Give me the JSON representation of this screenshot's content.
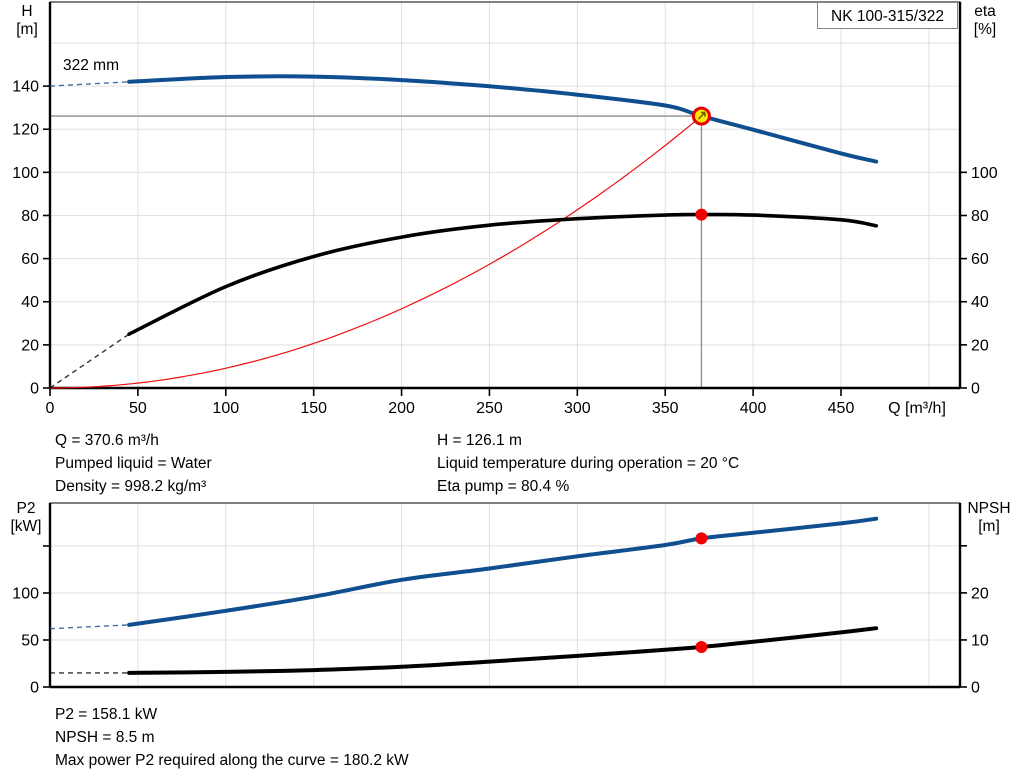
{
  "pump": {
    "model": "NK 100-315/322",
    "impeller_label": "322 mm"
  },
  "axis_titles": {
    "h": [
      "H",
      "[m]"
    ],
    "eta": [
      "eta",
      "[%]"
    ],
    "p2": [
      "P2",
      "[kW]"
    ],
    "npsh": [
      "NPSH",
      "[m]"
    ],
    "q": "Q [m³/h]"
  },
  "operating_point_info": {
    "left": [
      "Q = 370.6 m³/h",
      "Pumped liquid = Water",
      "Density = 998.2 kg/m³"
    ],
    "right": [
      "H = 126.1 m",
      "Liquid temperature during operation = 20 °C",
      "Eta pump = 80.4 %"
    ]
  },
  "power_info": [
    "P2 = 158.1 kW",
    "NPSH = 8.5 m",
    "Max power P2 required along the curve = 180.2 kW"
  ],
  "colors": {
    "curve_blue": "#104f8f",
    "curve_black": "#000000",
    "system_curve_red": "#f01010",
    "grid": "#e0e0e0",
    "crosshair": "#8c8c8c",
    "duty_fill": "#ffe800",
    "duty_stroke": "#e60000",
    "duty_dot": "#f00000",
    "axis": "#000000"
  },
  "chart_data": [
    {
      "type": "line",
      "title": "NK 100-315/322",
      "x": {
        "label": "Q [m³/h]",
        "min": 0,
        "max": 517.7,
        "tick_labels": [
          0,
          50,
          100,
          150,
          200,
          250,
          300,
          350,
          400,
          450
        ],
        "grid": [
          50,
          100,
          150,
          200,
          250,
          300,
          350,
          400,
          450,
          500
        ]
      },
      "y_left": {
        "label": "H [m]",
        "min": 0,
        "max": 179,
        "tick_labels": [
          0,
          20,
          40,
          60,
          80,
          100,
          120,
          140
        ],
        "grid": [
          20,
          40,
          60,
          80,
          100,
          120,
          140,
          160
        ]
      },
      "y_right": {
        "label": "eta [%]",
        "min": 0,
        "max": 179,
        "tick_labels": [
          0,
          20,
          40,
          60,
          80,
          100
        ]
      },
      "series": [
        {
          "name": "system-curve",
          "axis": "left",
          "color": "#f01010",
          "width": 1.2,
          "quadratic_through": [
            370.6,
            126.1
          ]
        },
        {
          "name": "efficiency-curve",
          "axis": "right",
          "color": "#000000",
          "width": 3.6,
          "dashed_lead": [
            [
              0,
              0
            ],
            [
              45,
              25
            ]
          ],
          "points": [
            [
              45,
              25
            ],
            [
              100,
              47
            ],
            [
              150,
              61
            ],
            [
              200,
              70
            ],
            [
              250,
              75.5
            ],
            [
              300,
              78.5
            ],
            [
              350,
              80.2
            ],
            [
              370.6,
              80.4
            ],
            [
              400,
              80.2
            ],
            [
              450,
              78
            ],
            [
              470,
              75.2
            ]
          ]
        },
        {
          "name": "head-curve",
          "axis": "left",
          "color": "#104f8f",
          "width": 4,
          "dashed_lead": [
            [
              0,
              140
            ],
            [
              45,
              142
            ]
          ],
          "points": [
            [
              45,
              142
            ],
            [
              100,
              144.2
            ],
            [
              150,
              144.4
            ],
            [
              200,
              142.8
            ],
            [
              250,
              139.9
            ],
            [
              300,
              136
            ],
            [
              350,
              131
            ],
            [
              370.6,
              126.1
            ],
            [
              400,
              119.8
            ],
            [
              450,
              108.8
            ],
            [
              470,
              105
            ]
          ]
        }
      ],
      "duty_point": {
        "q": 370.6,
        "h": 126.1,
        "eta": 80.4
      }
    },
    {
      "type": "line",
      "x": {
        "min": 0,
        "max": 517.7,
        "grid": [
          50,
          100,
          150,
          200,
          250,
          300,
          350,
          400,
          450,
          500
        ]
      },
      "y_left": {
        "label": "P2 [kW]",
        "min": 0,
        "max": 195.7,
        "tick_labels": [
          0,
          50,
          100
        ],
        "unlabeled_ticks": [
          150
        ],
        "grid": [
          50,
          100,
          150
        ]
      },
      "y_right": {
        "label": "NPSH [m]",
        "min": 0,
        "max": 39.1,
        "tick_labels": [
          0,
          10,
          20
        ],
        "unlabeled_ticks": [
          30
        ]
      },
      "series": [
        {
          "name": "p2-curve",
          "axis": "left",
          "color": "#104f8f",
          "width": 4,
          "dashed_lead": [
            [
              0,
              62
            ],
            [
              45,
              66
            ]
          ],
          "points": [
            [
              45,
              66
            ],
            [
              100,
              81
            ],
            [
              150,
              96
            ],
            [
              200,
              114
            ],
            [
              250,
              126
            ],
            [
              300,
              139
            ],
            [
              350,
              151
            ],
            [
              370.6,
              158.1
            ],
            [
              400,
              164
            ],
            [
              450,
              174
            ],
            [
              470,
              179
            ]
          ]
        },
        {
          "name": "npsh-curve",
          "axis": "right",
          "color": "#000000",
          "width": 4,
          "dashed_lead": [
            [
              0,
              3
            ],
            [
              45,
              3
            ]
          ],
          "points": [
            [
              45,
              3
            ],
            [
              100,
              3.2
            ],
            [
              150,
              3.6
            ],
            [
              200,
              4.3
            ],
            [
              250,
              5.4
            ],
            [
              300,
              6.6
            ],
            [
              350,
              7.9
            ],
            [
              370.6,
              8.5
            ],
            [
              400,
              9.6
            ],
            [
              450,
              11.6
            ],
            [
              470,
              12.5
            ]
          ]
        }
      ],
      "duty_point": {
        "q": 370.6,
        "p2": 158.1,
        "npsh": 8.5
      }
    }
  ]
}
